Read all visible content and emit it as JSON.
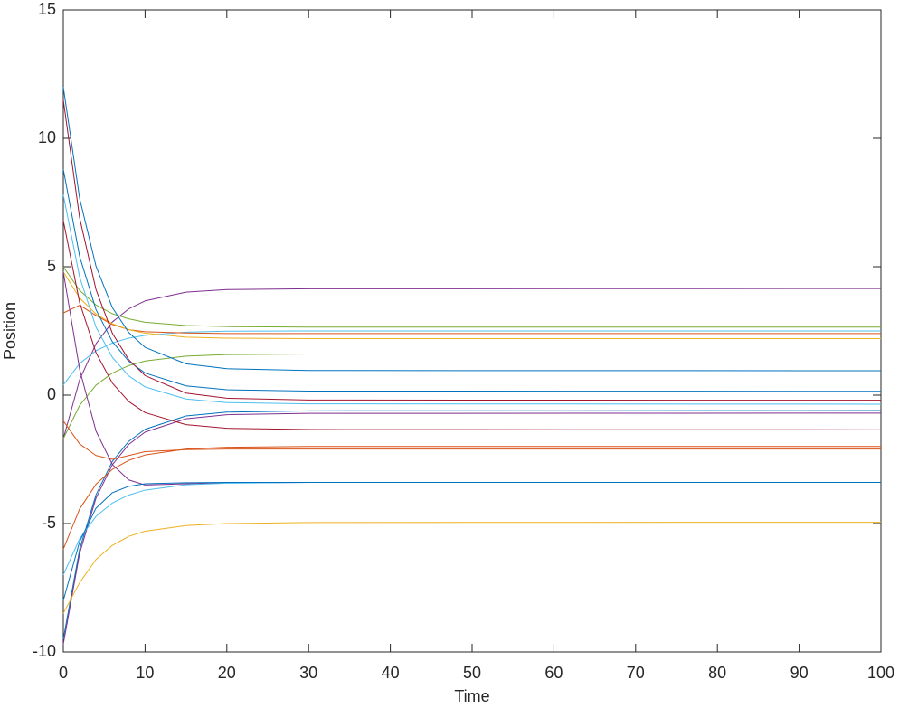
{
  "chart_data": {
    "type": "line",
    "xlabel": "Time",
    "ylabel": "Position",
    "x": [
      0,
      2,
      4,
      6,
      8,
      10,
      15,
      20,
      30,
      100
    ],
    "xlim": [
      0,
      100
    ],
    "ylim": [
      -10,
      15
    ],
    "xticks": [
      0,
      10,
      20,
      30,
      40,
      50,
      60,
      70,
      80,
      90,
      100
    ],
    "yticks": [
      -10,
      -5,
      0,
      5,
      10,
      15
    ],
    "grid": false,
    "series": [
      {
        "color": "#7E2F8E",
        "values": [
          -1.7,
          0.6,
          2.0,
          2.85,
          3.36,
          3.67,
          4.01,
          4.11,
          4.14,
          4.15
        ]
      },
      {
        "color": "#77AC30",
        "values": [
          5.0,
          4.08,
          3.51,
          3.17,
          2.97,
          2.84,
          2.71,
          2.67,
          2.65,
          2.65
        ]
      },
      {
        "color": "#4DBEEE",
        "values": [
          0.4,
          1.23,
          1.73,
          2.03,
          2.22,
          2.33,
          2.45,
          2.49,
          2.5,
          2.5
        ]
      },
      {
        "color": "#D95319",
        "values": [
          3.2,
          3.5,
          3.1,
          2.75,
          2.55,
          2.47,
          2.42,
          2.4,
          2.4,
          2.4
        ]
      },
      {
        "color": "#EDB120",
        "values": [
          4.8,
          3.78,
          3.16,
          2.78,
          2.55,
          2.41,
          2.26,
          2.22,
          2.2,
          2.2
        ]
      },
      {
        "color": "#77AC30",
        "values": [
          -1.7,
          -0.4,
          0.39,
          0.86,
          1.15,
          1.33,
          1.52,
          1.58,
          1.6,
          1.6
        ]
      },
      {
        "color": "#0072BD",
        "values": [
          12,
          7.66,
          5.02,
          3.41,
          2.44,
          1.86,
          1.22,
          1.03,
          0.96,
          0.95
        ]
      },
      {
        "color": "#0072BD",
        "values": [
          8.8,
          5.4,
          3.33,
          2.08,
          1.32,
          0.86,
          0.36,
          0.21,
          0.16,
          0.15
        ]
      },
      {
        "color": "#A2142F",
        "values": [
          11.5,
          6.9,
          4.11,
          2.41,
          1.38,
          0.76,
          0.08,
          -0.12,
          -0.19,
          -0.2
        ]
      },
      {
        "color": "#4DBEEE",
        "values": [
          7.8,
          4.6,
          2.65,
          1.47,
          0.75,
          0.32,
          -0.15,
          -0.29,
          -0.34,
          -0.35
        ]
      },
      {
        "color": "#0072BD",
        "values": [
          -9.5,
          -6.0,
          -3.88,
          -2.58,
          -1.8,
          -1.33,
          -0.81,
          -0.66,
          -0.61,
          -0.6
        ]
      },
      {
        "color": "#7E2F8E",
        "values": [
          -9.7,
          -6.16,
          -4.01,
          -2.71,
          -1.92,
          -1.44,
          -0.92,
          -0.76,
          -0.71,
          -0.7
        ]
      },
      {
        "color": "#A2142F",
        "values": [
          6.8,
          3.6,
          1.65,
          0.47,
          -0.25,
          -0.68,
          -1.15,
          -1.29,
          -1.34,
          -1.35
        ]
      },
      {
        "color": "#D95319",
        "values": [
          -6,
          -4.43,
          -3.47,
          -2.89,
          -2.54,
          -2.33,
          -2.1,
          -2.03,
          -2.0,
          -2.0
        ]
      },
      {
        "color": "#D95319",
        "values": [
          -1,
          -1.9,
          -2.35,
          -2.5,
          -2.35,
          -2.2,
          -2.12,
          -2.1,
          -2.1,
          -2.1
        ]
      },
      {
        "color": "#7E2F8E",
        "values": [
          4.8,
          1.0,
          -1.4,
          -2.7,
          -3.3,
          -3.5,
          -3.45,
          -3.41,
          -3.4,
          -3.4
        ]
      },
      {
        "color": "#4DBEEE",
        "values": [
          -7,
          -5.59,
          -4.72,
          -4.2,
          -3.89,
          -3.7,
          -3.49,
          -3.43,
          -3.4,
          -3.4
        ]
      },
      {
        "color": "#0072BD",
        "values": [
          -8.0,
          -5.7,
          -4.4,
          -3.8,
          -3.55,
          -3.45,
          -3.41,
          -3.4,
          -3.4,
          -3.4
        ]
      },
      {
        "color": "#EDB120",
        "values": [
          -8.5,
          -7.3,
          -6.4,
          -5.85,
          -5.5,
          -5.3,
          -5.08,
          -5.0,
          -4.96,
          -4.95
        ]
      }
    ]
  }
}
